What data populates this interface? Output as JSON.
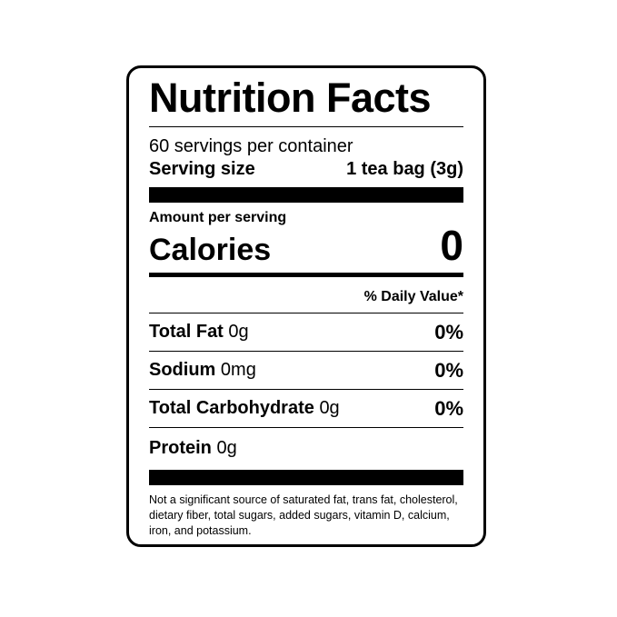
{
  "title": "Nutrition Facts",
  "servings": "60 servings per container",
  "serving_size_label": "Serving size",
  "serving_size_value": "1 tea bag (3g)",
  "amount_per_serving": "Amount per serving",
  "calories_label": "Calories",
  "calories_value": "0",
  "daily_value_header": "% Daily Value*",
  "nutrients": [
    {
      "name": "Total Fat",
      "amount": "0g",
      "dv": "0%"
    },
    {
      "name": "Sodium",
      "amount": "0mg",
      "dv": "0%"
    },
    {
      "name": "Total Carbohydrate",
      "amount": "0g",
      "dv": "0%"
    },
    {
      "name": "Protein",
      "amount": "0g",
      "dv": ""
    }
  ],
  "footnote": "Not a significant source of saturated fat, trans fat, cholesterol, dietary fiber, total sugars, added sugars, vitamin D, calcium, iron, and potassium."
}
